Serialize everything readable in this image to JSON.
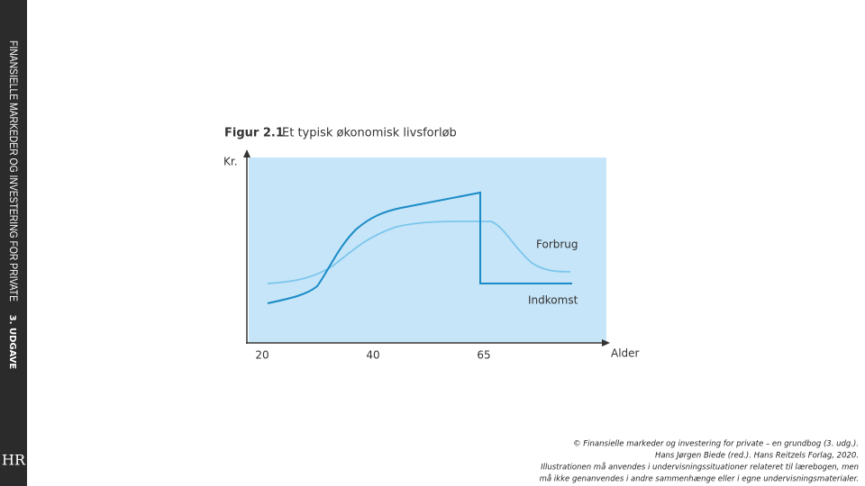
{
  "sidebar": {
    "title": "FINANSIELLE MARKEDER OG INVESTERING FOR PRIVATE",
    "edition": "3. UDGAVE",
    "logo": "HR"
  },
  "figure": {
    "label": "Figur 2.1",
    "title": "Et typisk økonomisk livsforløb",
    "y_axis": "Kr.",
    "x_axis": "Alder",
    "x_ticks": [
      "20",
      "40",
      "65"
    ],
    "series_labels": [
      "Forbrug",
      "Indkomst"
    ]
  },
  "footer": [
    "© Finansielle markeder og investering for private – en grundbog (3. udg.).",
    "Hans Jørgen Biede (red.). Hans Reitzels Forlag, 2020.",
    "Illustrationen må anvendes i undervisningssituationer relateret til lærebogen, men",
    "må ikke genanvendes i andre sammenhænge eller i egne undervisningsmaterialer."
  ]
}
